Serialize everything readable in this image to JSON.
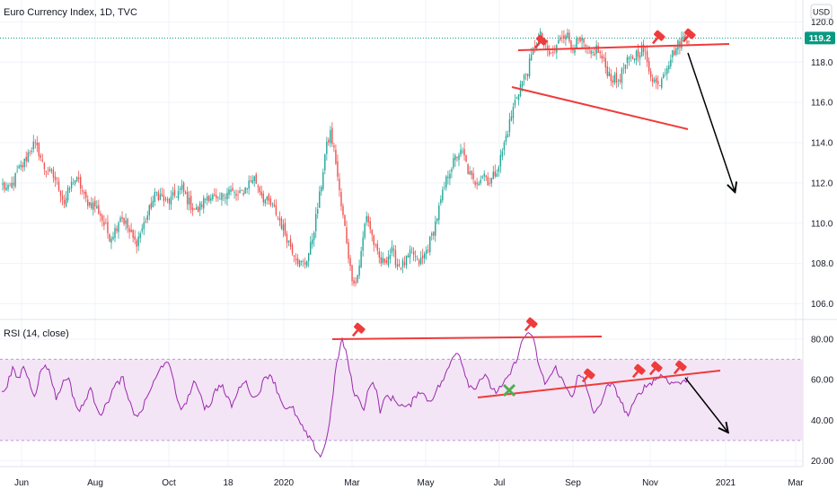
{
  "header": {
    "title": "Euro Currency Index, 1D, TVC",
    "currency_button": "USD"
  },
  "rsi_header": {
    "title": "RSI (14, close)"
  },
  "price_axis": {
    "ticks": [
      "120.0",
      "118.0",
      "116.0",
      "114.0",
      "112.0",
      "110.0",
      "108.0",
      "106.0"
    ],
    "current_label": "119.2"
  },
  "rsi_axis": {
    "ticks": [
      "80.00",
      "60.00",
      "40.00",
      "20.00"
    ]
  },
  "time_axis": {
    "ticks": [
      "Jun",
      "Aug",
      "Oct",
      "18",
      "2020",
      "Mar",
      "May",
      "Jul",
      "Sep",
      "Nov",
      "2021",
      "Mar"
    ]
  },
  "colors": {
    "up": "#26a69a",
    "down": "#ef5350",
    "rsi_line": "#9c27b0",
    "rsi_band": "#f3e5f5",
    "annotation": "#ef3b3b",
    "arrow": "#000000",
    "current_price": "#089981"
  },
  "chart_data": [
    {
      "type": "candlestick",
      "title": "Euro Currency Index, 1D, TVC",
      "ylim": [
        105.4,
        121.0
      ],
      "current_value": 119.2,
      "x_ticks": [
        "Jun",
        "Aug",
        "Oct",
        "18",
        "2020",
        "Mar",
        "May",
        "Jul",
        "Sep",
        "Nov",
        "2021",
        "Mar"
      ],
      "y_ticks": [
        120.0,
        118.0,
        116.0,
        114.0,
        112.0,
        110.0,
        108.0,
        106.0
      ],
      "trend_path": [
        111.9,
        111.6,
        112.0,
        112.6,
        112.9,
        113.5,
        113.9,
        113.6,
        112.8,
        112.5,
        112.3,
        111.8,
        111.0,
        111.7,
        112.2,
        112.0,
        111.2,
        111.0,
        110.9,
        110.5,
        109.8,
        109.3,
        109.7,
        110.4,
        110.0,
        109.4,
        109.0,
        109.6,
        110.2,
        110.9,
        111.5,
        111.3,
        111.0,
        111.2,
        111.5,
        111.7,
        111.2,
        110.8,
        110.6,
        111.0,
        111.4,
        111.3,
        111.0,
        111.4,
        111.7,
        111.5,
        111.3,
        111.6,
        112.0,
        112.3,
        111.8,
        111.2,
        111.0,
        110.7,
        110.2,
        109.6,
        109.0,
        108.5,
        108.0,
        108.0,
        108.7,
        110.0,
        111.5,
        113.5,
        114.5,
        113.2,
        111.0,
        109.5,
        107.5,
        107.0,
        108.5,
        110.5,
        109.5,
        108.5,
        108.0,
        108.3,
        108.6,
        108.0,
        107.9,
        108.2,
        108.6,
        108.0,
        108.2,
        108.8,
        109.5,
        110.5,
        111.5,
        112.5,
        113.0,
        113.5,
        113.4,
        112.5,
        112.0,
        112.2,
        112.5,
        112.0,
        112.4,
        113.0,
        114.0,
        115.0,
        116.0,
        116.8,
        117.3,
        118.0,
        118.9,
        119.3,
        118.7,
        118.3,
        118.6,
        119.3,
        119.5,
        118.8,
        118.9,
        119.0,
        118.6,
        118.3,
        118.7,
        118.2,
        117.6,
        117.2,
        117.0,
        117.5,
        118.0,
        118.2,
        118.5,
        118.7,
        117.8,
        117.2,
        116.8,
        117.5,
        118.0,
        118.5,
        118.9,
        119.2,
        119.2
      ]
    },
    {
      "type": "line",
      "title": "RSI (14, close)",
      "ylim": [
        18,
        87
      ],
      "band": [
        30,
        70
      ],
      "y_ticks": [
        80.0,
        60.0,
        40.0,
        20.0
      ],
      "values": [
        53,
        58,
        65,
        60,
        67,
        59,
        52,
        63,
        68,
        61,
        50,
        58,
        62,
        52,
        44,
        48,
        56,
        49,
        43,
        47,
        54,
        58,
        61,
        50,
        44,
        42,
        48,
        55,
        60,
        66,
        70,
        62,
        50,
        45,
        52,
        58,
        55,
        46,
        48,
        55,
        58,
        51,
        47,
        54,
        60,
        56,
        50,
        55,
        61,
        63,
        56,
        49,
        45,
        46,
        40,
        35,
        31,
        27,
        22,
        28,
        45,
        68,
        80,
        70,
        55,
        50,
        46,
        58,
        57,
        44,
        52,
        51,
        49,
        47,
        46,
        50,
        55,
        52,
        49,
        54,
        58,
        63,
        70,
        75,
        67,
        58,
        55,
        60,
        62,
        57,
        54,
        56,
        60,
        65,
        72,
        80,
        84,
        78,
        65,
        58,
        62,
        66,
        60,
        55,
        52,
        62,
        60,
        52,
        42,
        48,
        55,
        58,
        54,
        48,
        42,
        47,
        53,
        56,
        58,
        60,
        62,
        61,
        58,
        59,
        58,
        61
      ]
    }
  ]
}
